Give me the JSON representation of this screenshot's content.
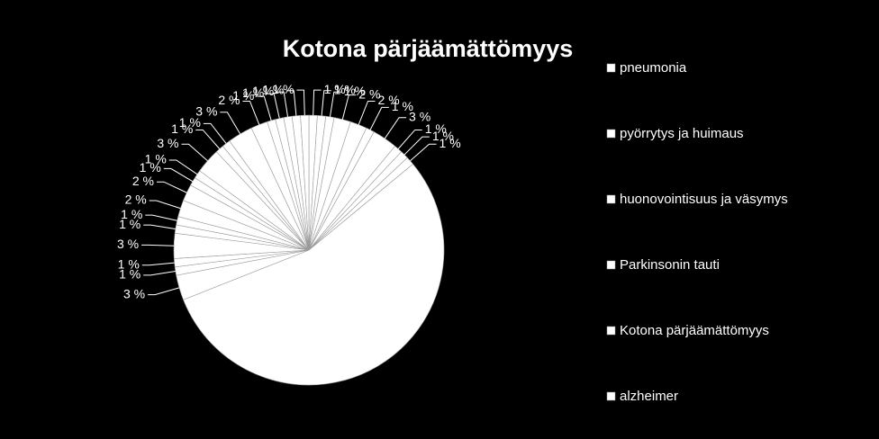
{
  "chart_data": {
    "type": "pie",
    "title": "Kotona pärjäämättömyys",
    "categories": [
      "pneumonia",
      "pyörrytys ja huimaus",
      "huonovointisuus ja väsymys",
      "Parkinsonin tauti",
      "Kotona pärjäämättömyys",
      "alzheimer",
      null,
      null,
      null,
      null,
      null,
      null,
      null,
      null,
      null,
      null,
      null,
      null,
      null,
      null,
      null,
      null,
      null,
      null,
      null,
      null,
      null,
      null,
      null,
      null,
      null
    ],
    "values": [
      1,
      1,
      1,
      2,
      2,
      1,
      3,
      1,
      1,
      1,
      55,
      3,
      1,
      1,
      3,
      1,
      1,
      2,
      2,
      1,
      1,
      3,
      1,
      1,
      3,
      2,
      1,
      1,
      1,
      1,
      1
    ],
    "value_labels": [
      "1 %",
      "1 %",
      "1 %",
      "2 %",
      "2 %",
      "1 %",
      "3 %",
      "1 %",
      "1 %",
      "1 %",
      null,
      "3 %",
      "1 %",
      "1 %",
      "3 %",
      "1 %",
      "1 %",
      "2 %",
      "2 %",
      "1 %",
      "1 %",
      "3 %",
      "1 %",
      "1 %",
      "3 %",
      "2 %",
      "1 %",
      "1 %",
      "1 %",
      "1 %",
      "1 %"
    ],
    "color": "#ffffff",
    "edge_color": "#9a9a9a",
    "legend": "right"
  }
}
